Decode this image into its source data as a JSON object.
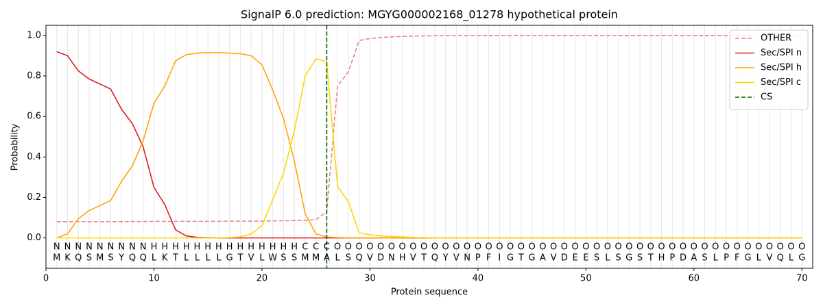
{
  "chart_data": {
    "type": "line",
    "title": "SignalP 6.0 prediction: MGYG000002168_01278 hypothetical protein",
    "x_label": "Protein sequence",
    "y_label": "Probability",
    "x": [
      1,
      2,
      3,
      4,
      5,
      6,
      7,
      8,
      9,
      10,
      11,
      12,
      13,
      14,
      15,
      16,
      17,
      18,
      19,
      20,
      21,
      22,
      23,
      24,
      25,
      26,
      27,
      28,
      29,
      30,
      31,
      32,
      33,
      34,
      35,
      36,
      37,
      38,
      39,
      40,
      41,
      42,
      43,
      44,
      45,
      46,
      47,
      48,
      49,
      50,
      51,
      52,
      53,
      54,
      55,
      56,
      57,
      58,
      59,
      60,
      61,
      62,
      63,
      64,
      65,
      66,
      67,
      68,
      69,
      70
    ],
    "residues": [
      "M",
      "K",
      "Q",
      "S",
      "M",
      "S",
      "Y",
      "Q",
      "Q",
      "L",
      "K",
      "T",
      "L",
      "L",
      "L",
      "L",
      "G",
      "T",
      "V",
      "L",
      "W",
      "S",
      "S",
      "M",
      "M",
      "A",
      "L",
      "S",
      "Q",
      "V",
      "D",
      "N",
      "H",
      "V",
      "T",
      "Q",
      "Y",
      "V",
      "N",
      "P",
      "F",
      "I",
      "G",
      "T",
      "G",
      "A",
      "V",
      "D",
      "E",
      "E",
      "S",
      "L",
      "S",
      "G",
      "S",
      "T",
      "H",
      "P",
      "D",
      "A",
      "S",
      "L",
      "P",
      "F",
      "G",
      "L",
      "V",
      "Q",
      "L",
      "G"
    ],
    "regions": [
      "N",
      "N",
      "N",
      "N",
      "N",
      "N",
      "N",
      "N",
      "N",
      "H",
      "H",
      "H",
      "H",
      "H",
      "H",
      "H",
      "H",
      "H",
      "H",
      "H",
      "H",
      "H",
      "H",
      "C",
      "C",
      "C",
      "O",
      "O",
      "O",
      "O",
      "O",
      "O",
      "O",
      "O",
      "O",
      "O",
      "O",
      "O",
      "O",
      "O",
      "O",
      "O",
      "O",
      "O",
      "O",
      "O",
      "O",
      "O",
      "O",
      "O",
      "O",
      "O",
      "O",
      "O",
      "O",
      "O",
      "O",
      "O",
      "O",
      "O",
      "O",
      "O",
      "O",
      "O",
      "O",
      "O",
      "O",
      "O",
      "O",
      "O"
    ],
    "region_colors": {
      "N": "#ff0000",
      "H": "#ffa500",
      "C": "#ffd700",
      "O": "#808080"
    },
    "series": [
      {
        "name": "OTHER",
        "color": "#f08080",
        "dash": true,
        "values": [
          0.08,
          0.08,
          0.08,
          0.08,
          0.08,
          0.08,
          0.081,
          0.081,
          0.081,
          0.082,
          0.082,
          0.082,
          0.082,
          0.082,
          0.082,
          0.082,
          0.083,
          0.083,
          0.083,
          0.083,
          0.084,
          0.085,
          0.086,
          0.087,
          0.09,
          0.13,
          0.75,
          0.82,
          0.975,
          0.985,
          0.99,
          0.993,
          0.995,
          0.997,
          0.998,
          0.999,
          0.999,
          0.999,
          0.999,
          1.0,
          1.0,
          1.0,
          1.0,
          1.0,
          1.0,
          1.0,
          1.0,
          1.0,
          1.0,
          1.0,
          1.0,
          1.0,
          1.0,
          1.0,
          1.0,
          1.0,
          1.0,
          1.0,
          1.0,
          1.0,
          1.0,
          1.0,
          1.0,
          1.0,
          1.0,
          1.0,
          1.0,
          1.0,
          1.0,
          1.0
        ]
      },
      {
        "name": "Sec/SPI n",
        "color": "#e41a1c",
        "dash": false,
        "values": [
          0.92,
          0.9,
          0.825,
          0.785,
          0.76,
          0.735,
          0.635,
          0.565,
          0.45,
          0.25,
          0.165,
          0.04,
          0.01,
          0.003,
          0.001,
          0,
          0,
          0,
          0,
          0,
          0,
          0,
          0,
          0,
          0,
          0,
          0,
          0,
          0,
          0,
          0,
          0,
          0,
          0,
          0,
          0,
          0,
          0,
          0,
          0,
          0,
          0,
          0,
          0,
          0,
          0,
          0,
          0,
          0,
          0,
          0,
          0,
          0,
          0,
          0,
          0,
          0,
          0,
          0,
          0,
          0,
          0,
          0,
          0,
          0,
          0,
          0,
          0,
          0,
          0
        ]
      },
      {
        "name": "Sec/SPI h",
        "color": "#ffa500",
        "dash": false,
        "values": [
          0.0,
          0.02,
          0.095,
          0.135,
          0.16,
          0.185,
          0.28,
          0.355,
          0.48,
          0.665,
          0.75,
          0.875,
          0.905,
          0.913,
          0.915,
          0.915,
          0.913,
          0.91,
          0.9,
          0.855,
          0.73,
          0.59,
          0.38,
          0.12,
          0.02,
          0.005,
          0.002,
          0,
          0,
          0,
          0,
          0,
          0,
          0,
          0,
          0,
          0,
          0,
          0,
          0,
          0,
          0,
          0,
          0,
          0,
          0,
          0,
          0,
          0,
          0,
          0,
          0,
          0,
          0,
          0,
          0,
          0,
          0,
          0,
          0,
          0,
          0,
          0,
          0,
          0,
          0,
          0,
          0,
          0,
          0
        ]
      },
      {
        "name": "Sec/SPI c",
        "color": "#ffd700",
        "dash": false,
        "values": [
          0,
          0,
          0,
          0,
          0,
          0,
          0,
          0,
          0,
          0,
          0,
          0,
          0,
          0,
          0,
          0,
          0.002,
          0.005,
          0.02,
          0.06,
          0.19,
          0.32,
          0.53,
          0.8,
          0.885,
          0.87,
          0.255,
          0.18,
          0.025,
          0.015,
          0.01,
          0.007,
          0.005,
          0.003,
          0.002,
          0,
          0,
          0,
          0,
          0,
          0,
          0,
          0,
          0,
          0,
          0,
          0,
          0,
          0,
          0,
          0,
          0,
          0,
          0,
          0,
          0,
          0,
          0,
          0,
          0,
          0,
          0,
          0,
          0,
          0,
          0,
          0,
          0,
          0,
          0
        ]
      }
    ],
    "cleavage_site": {
      "name": "CS",
      "x": 26,
      "color": "#006400"
    },
    "xlim": [
      0,
      71
    ],
    "ylim": [
      -0.15,
      1.05
    ],
    "xticks": [
      0,
      10,
      20,
      30,
      40,
      50,
      60,
      70
    ],
    "yticks": [
      {
        "value": 0,
        "label": "0.0"
      },
      0.2,
      0.4,
      0.6,
      0.8,
      {
        "value": 1,
        "label": "1.0"
      }
    ],
    "legend": "upper right",
    "grid": true
  }
}
